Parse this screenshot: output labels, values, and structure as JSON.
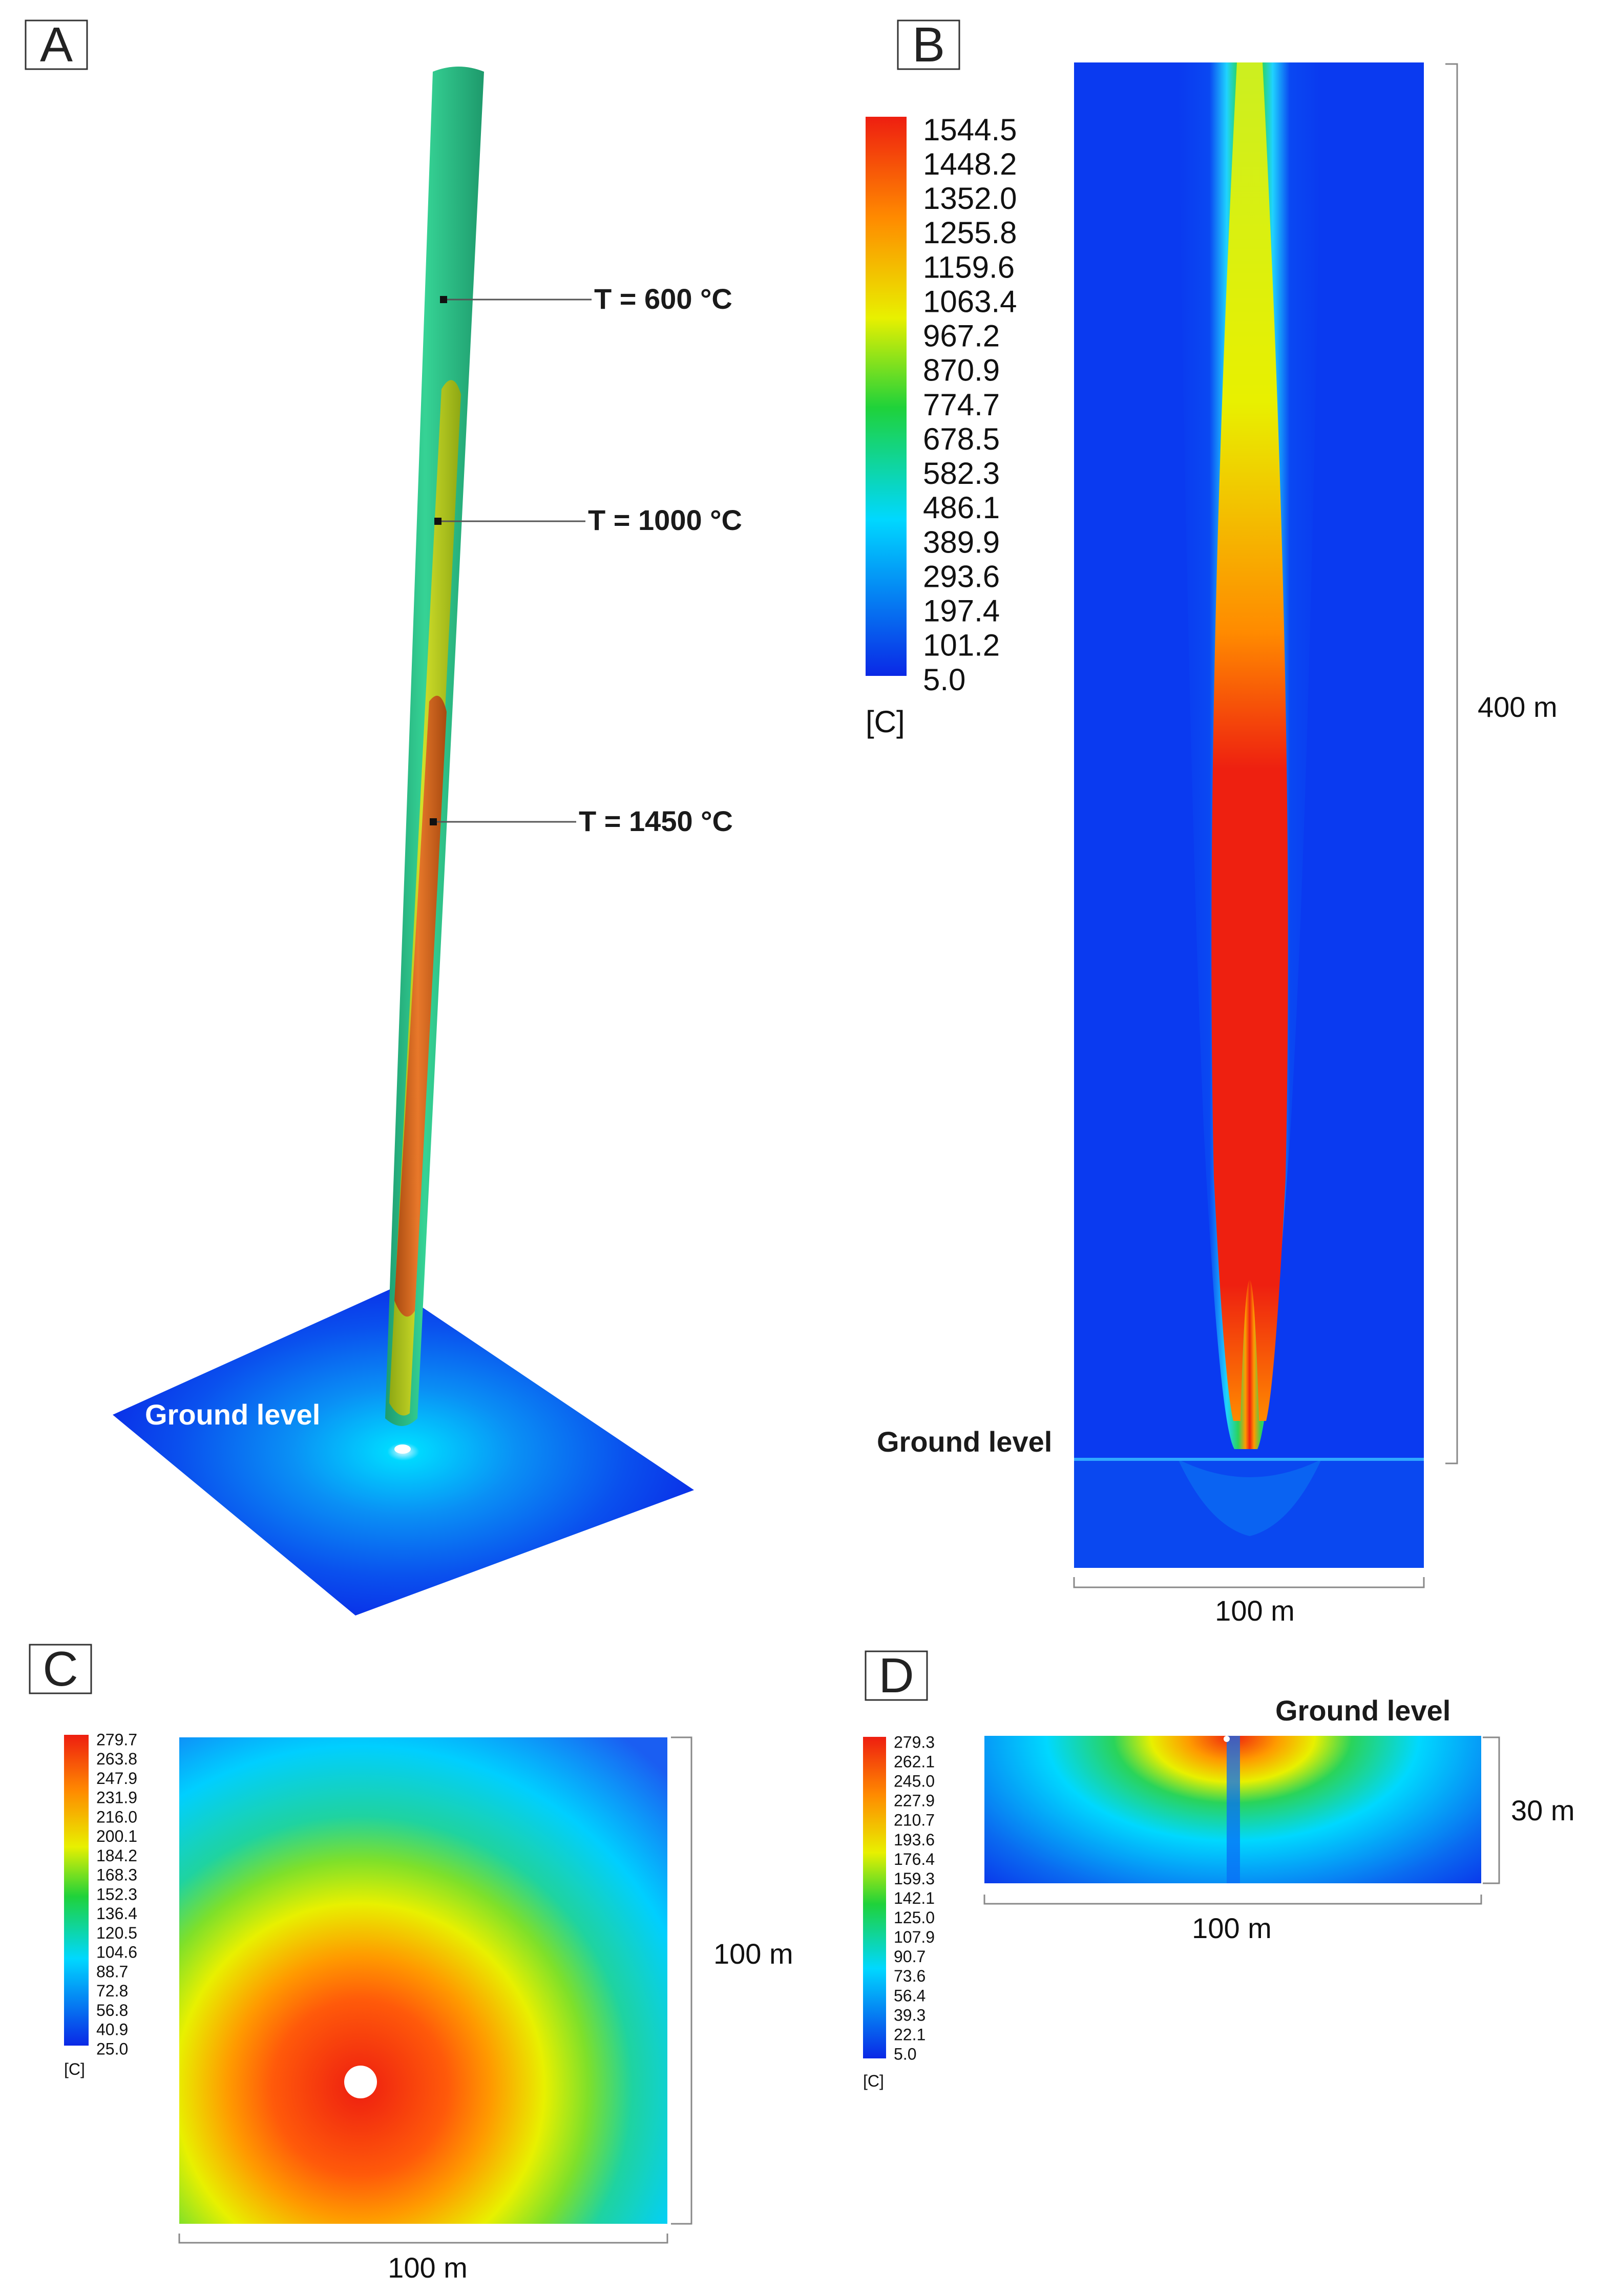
{
  "panels": {
    "a": {
      "letter": "A",
      "isotherms": [
        "T = 600 °C",
        "T = 1000 °C",
        "T = 1450 °C"
      ],
      "ground_label": "Ground level"
    },
    "b": {
      "letter": "B",
      "colorbar_values": [
        "1544.5",
        "1448.2",
        "1352.0",
        "1255.8",
        "1159.6",
        "1063.4",
        "967.2",
        "870.9",
        "774.7",
        "678.5",
        "582.3",
        "486.1",
        "389.9",
        "293.6",
        "197.4",
        "101.2",
        "5.0"
      ],
      "unit": "[C]",
      "height_label": "400 m",
      "width_label": "100 m",
      "ground_label": "Ground level"
    },
    "c": {
      "letter": "C",
      "colorbar_values": [
        "279.7",
        "263.8",
        "247.9",
        "231.9",
        "216.0",
        "200.1",
        "184.2",
        "168.3",
        "152.3",
        "136.4",
        "120.5",
        "104.6",
        "88.7",
        "72.8",
        "56.8",
        "40.9",
        "25.0"
      ],
      "unit": "[C]",
      "height_label": "100 m",
      "width_label": "100 m"
    },
    "d": {
      "letter": "D",
      "colorbar_values": [
        "279.3",
        "262.1",
        "245.0",
        "227.9",
        "210.7",
        "193.6",
        "176.4",
        "159.3",
        "142.1",
        "125.0",
        "107.9",
        "90.7",
        "73.6",
        "56.4",
        "39.3",
        "22.1",
        "5.0"
      ],
      "unit": "[C]",
      "height_label": "30 m",
      "width_label": "100 m",
      "ground_label": "Ground level"
    }
  },
  "colors": {
    "min": "#0a28e6",
    "low": "#00d8ff",
    "mid_green": "#1fd23a",
    "yellow": "#e8f000",
    "orange": "#ff8a00",
    "max": "#ee1e10",
    "isosurface_600": "#2fc98a",
    "isosurface_1000": "#b9d21a",
    "isosurface_1450": "#e0701a"
  }
}
